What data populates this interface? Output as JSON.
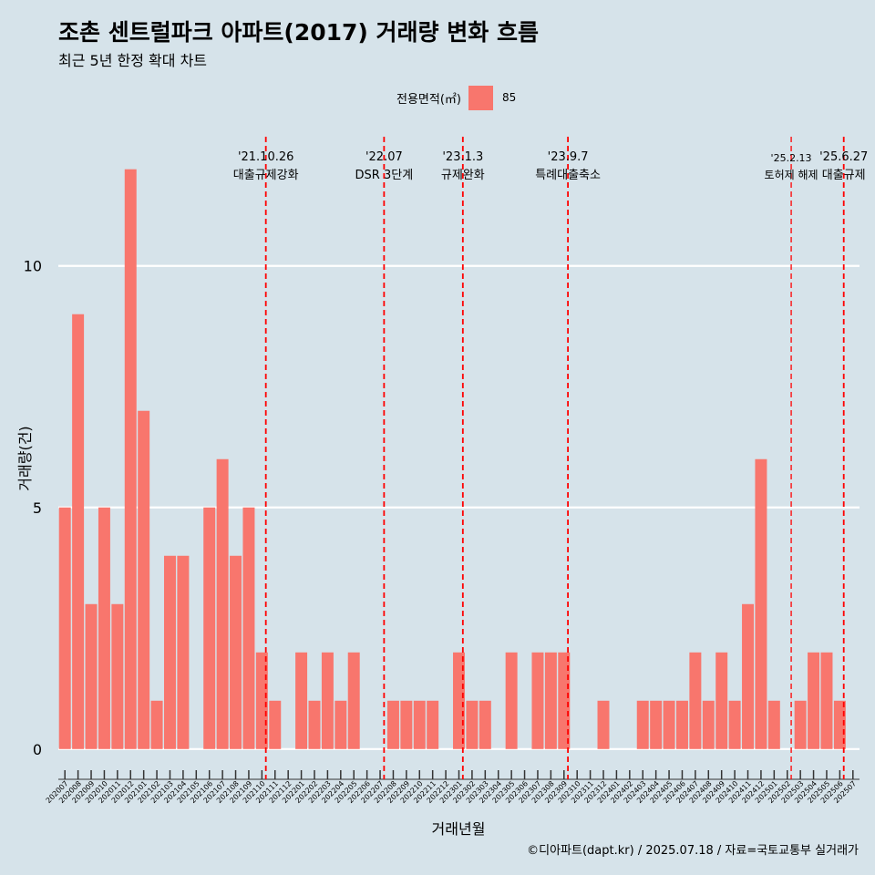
{
  "chart_data": {
    "type": "bar",
    "title": "조촌 센트럴파크 아파트(2017) 거래량 변화 흐름",
    "subtitle": "최근 5년 한정 확대 차트",
    "xlabel": "거래년월",
    "ylabel": "거래량(건)",
    "legend": {
      "title": "전용면적(㎡)",
      "entries": [
        "85"
      ],
      "position": "top"
    },
    "caption": "©디아파트(dapt.kr) / 2025.07.18 / 자료=국토교통부 실거래가",
    "ylim": [
      -0.4,
      12.9
    ],
    "yticks": [
      0,
      5,
      10
    ],
    "grid": true,
    "bar_color": "#f8766d",
    "categories": [
      "202007",
      "202008",
      "202009",
      "202010",
      "202011",
      "202012",
      "202101",
      "202102",
      "202103",
      "202104",
      "202105",
      "202106",
      "202107",
      "202108",
      "202109",
      "202110",
      "202111",
      "202112",
      "202201",
      "202202",
      "202203",
      "202204",
      "202205",
      "202206",
      "202207",
      "202208",
      "202209",
      "202210",
      "202211",
      "202212",
      "202301",
      "202302",
      "202303",
      "202304",
      "202305",
      "202306",
      "202307",
      "202308",
      "202309",
      "202310",
      "202311",
      "202312",
      "202401",
      "202402",
      "202403",
      "202404",
      "202405",
      "202406",
      "202407",
      "202408",
      "202409",
      "202410",
      "202411",
      "202412",
      "202501",
      "202502",
      "202503",
      "202504",
      "202505",
      "202506",
      "202507"
    ],
    "series": [
      {
        "name": "85",
        "values": [
          5,
          9,
          3,
          5,
          3,
          12,
          7,
          1,
          4,
          4,
          0,
          5,
          6,
          4,
          5,
          2,
          1,
          0,
          2,
          1,
          2,
          1,
          2,
          0,
          0,
          1,
          1,
          1,
          1,
          0,
          2,
          1,
          1,
          0,
          2,
          0,
          2,
          2,
          2,
          0,
          0,
          1,
          0,
          0,
          1,
          1,
          1,
          1,
          2,
          1,
          2,
          1,
          3,
          6,
          1,
          0,
          1,
          2,
          2,
          1,
          0
        ]
      }
    ],
    "annotations": [
      {
        "date": "'21.10.26",
        "label": "대출규제강화",
        "at_index": 15.3
      },
      {
        "date": "'22.07",
        "label": "DSR 3단계",
        "at_index": 24.3
      },
      {
        "date": "'23.1.3",
        "label": "규제완화",
        "at_index": 30.3
      },
      {
        "date": "'23.9.7",
        "label": "특례대출축소",
        "at_index": 38.3
      },
      {
        "date": "'25.2.13",
        "label": "토허제 해제",
        "at_index": 55.3
      },
      {
        "date": "'25.6.27",
        "label": "대출규제",
        "at_index": 59.3
      }
    ],
    "annotation_color": "#ff0000"
  }
}
